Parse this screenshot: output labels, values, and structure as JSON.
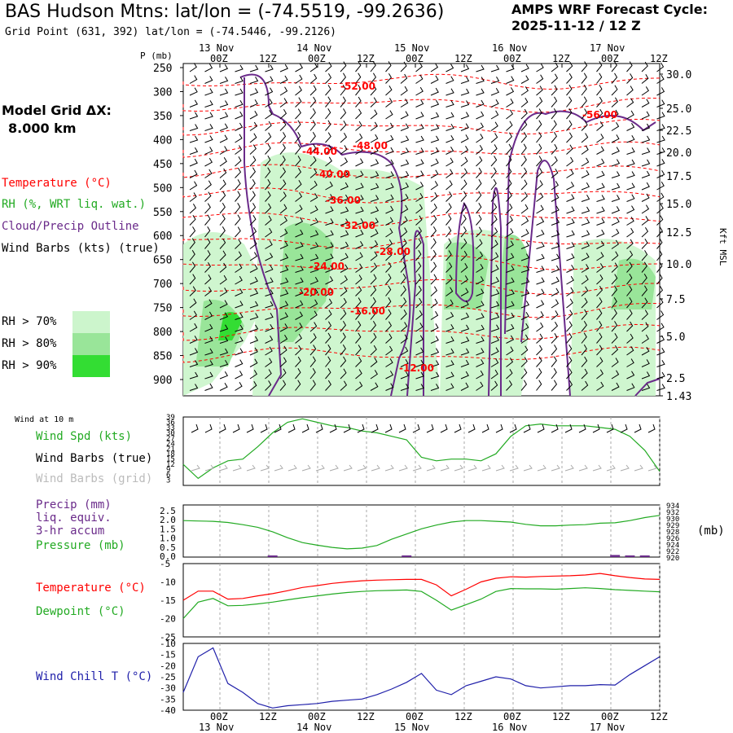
{
  "header": {
    "title": "BAS Hudson Mtns:  lat/lon = (-74.5519, -99.2636)",
    "subtitle": "Grid Point (631, 392) lat/lon = (-74.5446, -99.2126)",
    "cycle_line1": "AMPS WRF Forecast Cycle:",
    "cycle_line2": "2025-11-12 / 12  Z"
  },
  "model": {
    "label": "Model Grid ΔX:",
    "value": "8.000 km"
  },
  "legend": {
    "temperature": "Temperature (°C)",
    "rh": "RH (%, WRT liq. wat.)",
    "cloud": "Cloud/Precip Outline",
    "wind": "Wind Barbs (kts) (true)",
    "rh70": "RH > 70%",
    "rh80": "RH > 80%",
    "rh90": "RH > 90%",
    "colors": {
      "temperature": "#ff0000",
      "rh": "#22aa22",
      "cloud": "#6a2a8a",
      "rh70": "#ccf5cc",
      "rh80": "#99e599",
      "rh90": "#33dd33"
    }
  },
  "time_axis": {
    "ticks": [
      "00Z",
      "12Z",
      "00Z",
      "12Z",
      "00Z",
      "12Z",
      "00Z",
      "12Z",
      "00Z",
      "12Z"
    ],
    "dates": [
      "13 Nov",
      "14 Nov",
      "15 Nov",
      "16 Nov",
      "17 Nov"
    ]
  },
  "sounding": {
    "p_label": "P (mb)",
    "pressure_levels": [
      "250",
      "300",
      "350",
      "400",
      "450",
      "500",
      "550",
      "600",
      "650",
      "700",
      "750",
      "800",
      "850",
      "900"
    ],
    "height_ticks": [
      "30.0",
      "25.0",
      "22.5",
      "20.0",
      "17.5",
      "15.0",
      "12.5",
      "10.0",
      "7.5",
      "5.0",
      "2.5",
      "1.43"
    ],
    "height_unit": "Kft MSL",
    "temp_labels": [
      "-52.00",
      "-56.00",
      "-44.00",
      "-48.00",
      "-40.00",
      "-36.00",
      "-32.00",
      "-28.00",
      "-24.00",
      "-20.00",
      "-16.00",
      "-12.00"
    ]
  },
  "panels": {
    "wind_at": "Wind at 10 m",
    "wind_spd": "Wind Spd (kts)",
    "wind_true": "Wind Barbs (true)",
    "wind_grid": "Wind Barbs (grid)",
    "precip1": "Precip (mm)",
    "precip2": "liq. equiv.",
    "precip3": "3-hr accum",
    "pressure": "Pressure (mb)",
    "pressure_unit": "(mb)",
    "temperature": "Temperature (°C)",
    "dewpoint": "Dewpoint (°C)",
    "windchill": "Wind Chill T (°C)"
  },
  "chart_data": [
    {
      "type": "line",
      "title": "Wind at 10 m",
      "x_hours": [
        0,
        3,
        6,
        9,
        12,
        15,
        18,
        21,
        24,
        27,
        30,
        33,
        36,
        39,
        42,
        45,
        48,
        51,
        54,
        57,
        60,
        63,
        66,
        69,
        72,
        75,
        78,
        81,
        84,
        87,
        90,
        93,
        96
      ],
      "series": [
        {
          "name": "Wind Spd (kts)",
          "values": [
            12,
            4,
            10,
            14,
            15,
            22,
            30,
            36,
            38,
            36,
            34,
            33,
            31,
            30,
            28,
            26,
            16,
            14,
            15,
            15,
            14,
            18,
            28,
            34,
            35,
            34,
            34,
            34,
            33,
            32,
            28,
            20,
            8
          ]
        }
      ],
      "y_ticks": [
        "39",
        "36",
        "33",
        "30",
        "27",
        "24",
        "21",
        "18",
        "15",
        "12",
        "9",
        "6",
        "3"
      ],
      "ylim": [
        0,
        39
      ]
    },
    {
      "type": "line",
      "x_hours": [
        0,
        3,
        6,
        9,
        12,
        15,
        18,
        21,
        24,
        27,
        30,
        33,
        36,
        39,
        42,
        45,
        48,
        51,
        54,
        57,
        60,
        63,
        66,
        69,
        72,
        75,
        78,
        81,
        84,
        87,
        90,
        93,
        96
      ],
      "series": [
        {
          "name": "Pressure (mb)",
          "values": [
            929.8,
            929.7,
            929.6,
            929.3,
            928.7,
            928.0,
            926.8,
            925.2,
            923.9,
            923.2,
            922.6,
            922.2,
            922.4,
            923.1,
            924.8,
            926.2,
            927.6,
            928.6,
            929.4,
            929.8,
            929.8,
            929.6,
            929.4,
            928.8,
            928.4,
            928.4,
            928.6,
            928.7,
            929.1,
            929.2,
            929.8,
            930.6,
            931.2
          ]
        },
        {
          "name": "Precip (mm)",
          "values": [
            0,
            0,
            0,
            0,
            0,
            0,
            0.02,
            0,
            0,
            0,
            0,
            0,
            0,
            0,
            0,
            0.03,
            0,
            0,
            0,
            0,
            0,
            0,
            0,
            0,
            0,
            0,
            0,
            0,
            0,
            0.1,
            0.05,
            0.05,
            0
          ]
        }
      ],
      "y_ticks_left": [
        "2.5",
        "2.0",
        "1.5",
        "1.0",
        "0.5",
        "0.0"
      ],
      "y_ticks_right": [
        "934",
        "932",
        "930",
        "929",
        "928",
        "926",
        "924",
        "922",
        "920"
      ],
      "ylim_precip": [
        0,
        2.5
      ],
      "ylim_pressure": [
        920,
        934
      ]
    },
    {
      "type": "line",
      "x_hours": [
        0,
        3,
        6,
        9,
        12,
        15,
        18,
        21,
        24,
        27,
        30,
        33,
        36,
        39,
        42,
        45,
        48,
        51,
        54,
        57,
        60,
        63,
        66,
        69,
        72,
        75,
        78,
        81,
        84,
        87,
        90,
        93,
        96
      ],
      "series": [
        {
          "name": "Temperature (°C)",
          "values": [
            -15,
            -12.5,
            -12.5,
            -14.7,
            -14.5,
            -13.8,
            -13.2,
            -12.4,
            -11.5,
            -11,
            -10.4,
            -10,
            -9.7,
            -9.5,
            -9.4,
            -9.3,
            -9.3,
            -10.8,
            -13.8,
            -12,
            -10,
            -9,
            -8.6,
            -8.7,
            -8.5,
            -8.4,
            -8.3,
            -8.1,
            -7.7,
            -8.3,
            -8.8,
            -9.2,
            -9.3
          ]
        },
        {
          "name": "Dewpoint (°C)",
          "values": [
            -20,
            -15.5,
            -14.5,
            -16.5,
            -16.4,
            -16,
            -15.5,
            -14.9,
            -14.3,
            -13.8,
            -13.3,
            -12.9,
            -12.6,
            -12.4,
            -12.3,
            -12.2,
            -12.6,
            -15,
            -17.7,
            -16.2,
            -14.7,
            -12.6,
            -11.8,
            -11.9,
            -11.9,
            -12,
            -11.8,
            -11.6,
            -11.8,
            -12.1,
            -12.3,
            -12.5,
            -12.7
          ]
        }
      ],
      "y_ticks": [
        "-5",
        "-10",
        "-15",
        "-20",
        "-25"
      ],
      "ylim": [
        -25,
        -5
      ]
    },
    {
      "type": "line",
      "x_hours": [
        0,
        3,
        6,
        9,
        12,
        15,
        18,
        21,
        24,
        27,
        30,
        33,
        36,
        39,
        42,
        45,
        48,
        51,
        54,
        57,
        60,
        63,
        66,
        69,
        72,
        75,
        78,
        81,
        84,
        87,
        90,
        93,
        96
      ],
      "series": [
        {
          "name": "Wind Chill T (°C)",
          "values": [
            -32,
            -16,
            -12,
            -28,
            -32,
            -37,
            -39,
            -38,
            -37.5,
            -37,
            -36,
            -35.5,
            -35,
            -33,
            -30.5,
            -27.5,
            -23.5,
            -31,
            -33,
            -29,
            -27,
            -25,
            -26,
            -29,
            -30,
            -29.5,
            -29,
            -29,
            -28.5,
            -28.7,
            -24,
            -20,
            -16
          ]
        }
      ],
      "y_ticks": [
        "-10",
        "-15",
        "-20",
        "-25",
        "-30",
        "-35",
        "-40"
      ],
      "ylim": [
        -40,
        -10
      ]
    }
  ]
}
